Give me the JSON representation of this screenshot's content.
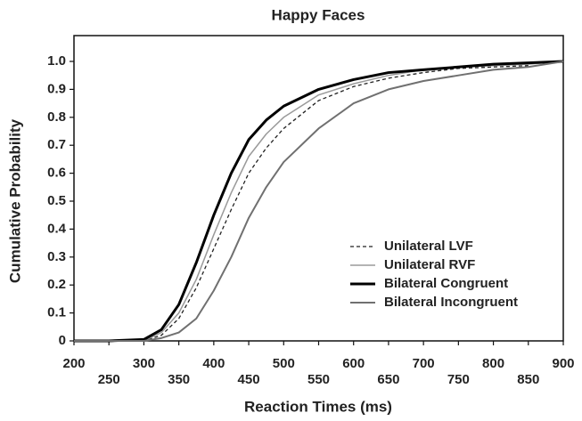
{
  "chart_data": {
    "type": "line",
    "title": "Happy Faces",
    "x_label": "Reaction Times (ms)",
    "y_label": "Cumulative Probability",
    "x": [
      200,
      250,
      300,
      325,
      350,
      375,
      400,
      425,
      450,
      475,
      500,
      550,
      600,
      650,
      700,
      750,
      800,
      850,
      900
    ],
    "series": [
      {
        "name": "Unilateral LVF",
        "color": "#222222",
        "dash": true,
        "width": 1.3,
        "values": [
          0,
          0,
          0,
          0.02,
          0.08,
          0.19,
          0.33,
          0.47,
          0.6,
          0.69,
          0.76,
          0.86,
          0.91,
          0.94,
          0.96,
          0.975,
          0.98,
          0.985,
          null
        ]
      },
      {
        "name": "Unilateral RVF",
        "color": "#9a9a9a",
        "dash": false,
        "width": 1.5,
        "values": [
          0,
          0,
          0,
          0.03,
          0.1,
          0.22,
          0.38,
          0.53,
          0.66,
          0.74,
          0.8,
          0.88,
          0.92,
          0.95,
          0.97,
          0.98,
          0.985,
          0.99,
          1.0
        ]
      },
      {
        "name": "Bilateral Congruent",
        "color": "#000000",
        "dash": false,
        "width": 3,
        "values": [
          0,
          0,
          0.005,
          0.04,
          0.13,
          0.28,
          0.45,
          0.6,
          0.72,
          0.79,
          0.84,
          0.9,
          0.935,
          0.96,
          0.97,
          0.98,
          0.99,
          0.995,
          1.0
        ]
      },
      {
        "name": "Bilateral Incongruent",
        "color": "#707070",
        "dash": false,
        "width": 2,
        "values": [
          0,
          0,
          0,
          0.01,
          0.03,
          0.08,
          0.18,
          0.3,
          0.44,
          0.55,
          0.64,
          0.76,
          0.85,
          0.9,
          0.93,
          0.95,
          0.97,
          0.98,
          1.0
        ]
      }
    ],
    "xlim": [
      200,
      900
    ],
    "xticks": [
      200,
      250,
      300,
      350,
      400,
      450,
      500,
      550,
      600,
      650,
      700,
      750,
      800,
      850,
      900
    ],
    "ylim": [
      0,
      1.0
    ],
    "yticks": [
      0,
      0.1,
      0.2,
      0.3,
      0.4,
      0.5,
      0.6,
      0.7,
      0.8,
      0.9,
      {
        "value": 1.0,
        "label": "1.0"
      }
    ],
    "legend": "lower right"
  }
}
